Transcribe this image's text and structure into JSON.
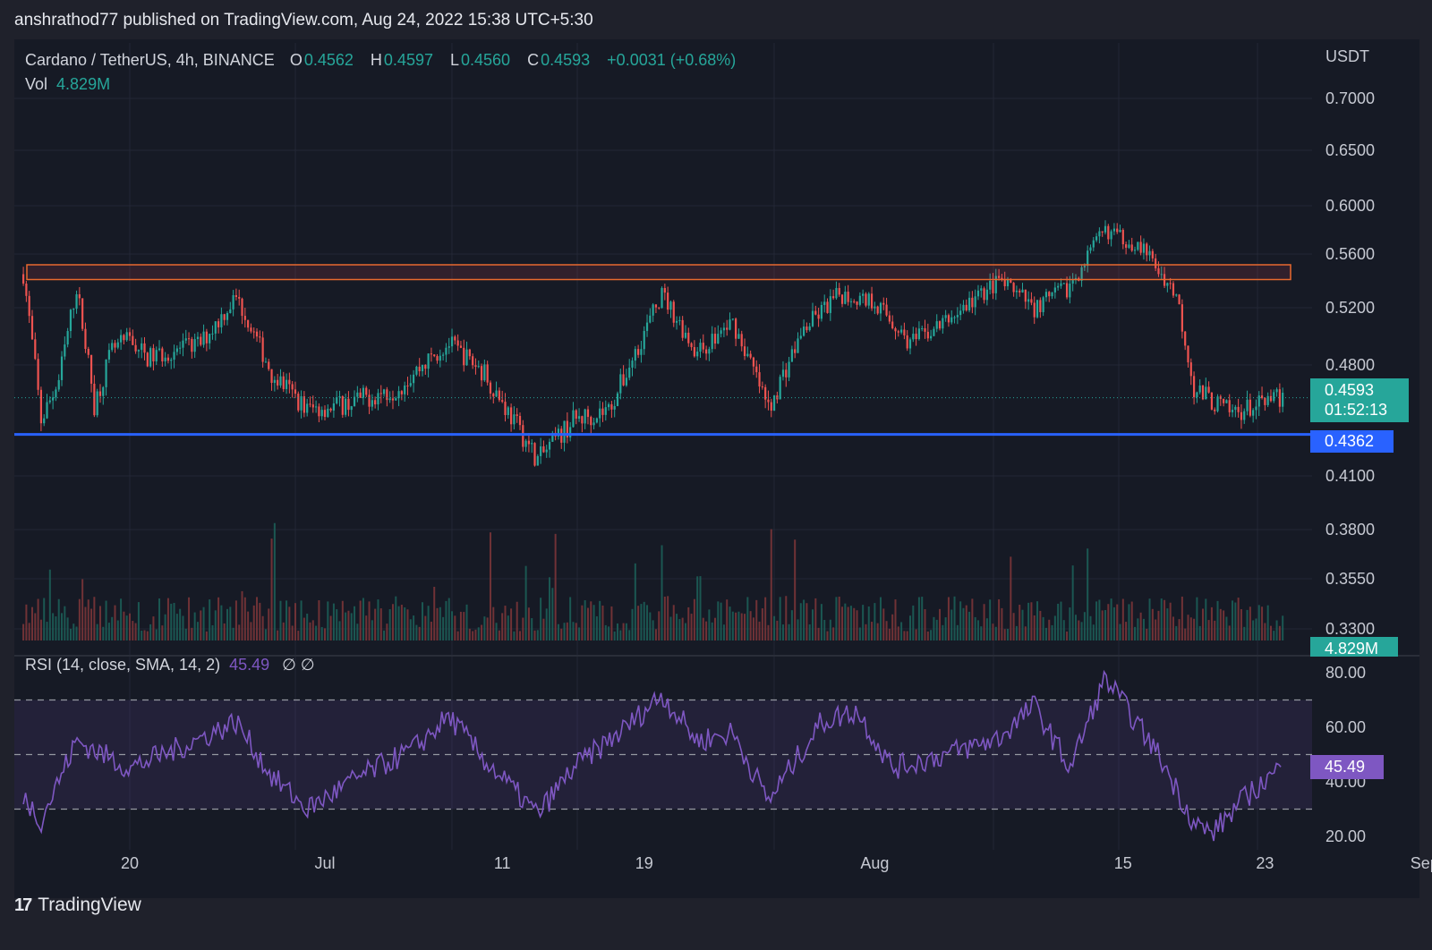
{
  "header": {
    "publish_line": "anshrathod77 published on TradingView.com, Aug 24, 2022 15:38 UTC+5:30"
  },
  "legend": {
    "symbol": "Cardano / TetherUS, 4h, BINANCE",
    "o_label": "O",
    "o_value": "0.4562",
    "h_label": "H",
    "h_value": "0.4597",
    "l_label": "L",
    "l_value": "0.4560",
    "c_label": "C",
    "c_value": "0.4593",
    "change": "+0.0031 (+0.68%)",
    "vol_label": "Vol",
    "vol_value": "4.829M"
  },
  "rsi_legend": {
    "label": "RSI (14, close, SMA, 14, 2)",
    "value": "45.49",
    "extra": "∅  ∅"
  },
  "price_axis": {
    "currency": "USDT",
    "ticks": [
      "0.7000",
      "0.6500",
      "0.6000",
      "0.5600",
      "0.5200",
      "0.4800",
      "0.4100",
      "0.3800",
      "0.3550",
      "0.3300"
    ]
  },
  "rsi_axis": {
    "ticks": [
      "80.00",
      "60.00",
      "40.00",
      "20.00"
    ]
  },
  "time_axis": {
    "ticks": [
      "20",
      "Jul",
      "11",
      "19",
      "Aug",
      "15",
      "23",
      "Sep"
    ]
  },
  "badges": {
    "last_price": "0.4593",
    "countdown": "01:52:13",
    "support": "0.4362",
    "volume": "4.829M",
    "rsi": "45.49"
  },
  "colors": {
    "up": "#26a69a",
    "down": "#ef5350",
    "support_line": "#2962ff",
    "resistance_box": "#f7525f",
    "rsi_line": "#7e57c2",
    "rsi_band": "#7e57c2",
    "background": "#161a25"
  },
  "footer": {
    "brand": "TradingView",
    "logo_text": "17"
  },
  "chart_data": {
    "type": "candlestick",
    "symbol": "ADA/USDT",
    "interval": "4h",
    "x_range": [
      "2022-06-14",
      "2022-09-03"
    ],
    "ylim": [
      0.33,
      0.7
    ],
    "last": {
      "open": 0.4562,
      "high": 0.4597,
      "low": 0.456,
      "close": 0.4593,
      "volume": "4.829M"
    },
    "support_level": 0.4362,
    "resistance_zone": [
      0.541,
      0.552
    ],
    "price_path": [
      [
        "2022-06-14",
        0.545
      ],
      [
        "2022-06-15",
        0.445
      ],
      [
        "2022-06-16",
        0.47
      ],
      [
        "2022-06-17",
        0.535
      ],
      [
        "2022-06-18",
        0.455
      ],
      [
        "2022-06-19",
        0.49
      ],
      [
        "2022-06-20",
        0.498
      ],
      [
        "2022-06-21",
        0.485
      ],
      [
        "2022-06-24",
        0.495
      ],
      [
        "2022-06-26",
        0.528
      ],
      [
        "2022-06-28",
        0.475
      ],
      [
        "2022-06-30",
        0.452
      ],
      [
        "2022-07-02",
        0.455
      ],
      [
        "2022-07-05",
        0.465
      ],
      [
        "2022-07-08",
        0.495
      ],
      [
        "2022-07-10",
        0.475
      ],
      [
        "2022-07-13",
        0.42
      ],
      [
        "2022-07-15",
        0.445
      ],
      [
        "2022-07-17",
        0.452
      ],
      [
        "2022-07-18",
        0.475
      ],
      [
        "2022-07-20",
        0.53
      ],
      [
        "2022-07-22",
        0.488
      ],
      [
        "2022-07-24",
        0.51
      ],
      [
        "2022-07-26",
        0.452
      ],
      [
        "2022-07-28",
        0.505
      ],
      [
        "2022-07-30",
        0.53
      ],
      [
        "2022-08-01",
        0.525
      ],
      [
        "2022-08-03",
        0.495
      ],
      [
        "2022-08-05",
        0.51
      ],
      [
        "2022-08-08",
        0.54
      ],
      [
        "2022-08-10",
        0.52
      ],
      [
        "2022-08-12",
        0.536
      ],
      [
        "2022-08-14",
        0.58
      ],
      [
        "2022-08-16",
        0.566
      ],
      [
        "2022-08-18",
        0.53
      ],
      [
        "2022-08-19",
        0.465
      ],
      [
        "2022-08-21",
        0.45
      ],
      [
        "2022-08-23",
        0.455
      ],
      [
        "2022-08-24",
        0.4593
      ]
    ],
    "rsi": {
      "period": 14,
      "levels": [
        70,
        50,
        30
      ],
      "last": 45.49,
      "path": [
        [
          "2022-06-14",
          35
        ],
        [
          "2022-06-15",
          26
        ],
        [
          "2022-06-17",
          55
        ],
        [
          "2022-06-20",
          45
        ],
        [
          "2022-06-23",
          53
        ],
        [
          "2022-06-26",
          62
        ],
        [
          "2022-06-28",
          42
        ],
        [
          "2022-06-30",
          30
        ],
        [
          "2022-07-03",
          42
        ],
        [
          "2022-07-06",
          52
        ],
        [
          "2022-07-08",
          64
        ],
        [
          "2022-07-10",
          48
        ],
        [
          "2022-07-13",
          28
        ],
        [
          "2022-07-15",
          45
        ],
        [
          "2022-07-18",
          60
        ],
        [
          "2022-07-20",
          72
        ],
        [
          "2022-07-22",
          55
        ],
        [
          "2022-07-24",
          58
        ],
        [
          "2022-07-26",
          33
        ],
        [
          "2022-07-29",
          62
        ],
        [
          "2022-07-31",
          66
        ],
        [
          "2022-08-02",
          45
        ],
        [
          "2022-08-05",
          50
        ],
        [
          "2022-08-08",
          56
        ],
        [
          "2022-08-10",
          68
        ],
        [
          "2022-08-12",
          45
        ],
        [
          "2022-08-14",
          78
        ],
        [
          "2022-08-17",
          50
        ],
        [
          "2022-08-19",
          25
        ],
        [
          "2022-08-20",
          21
        ],
        [
          "2022-08-22",
          35
        ],
        [
          "2022-08-24",
          45.49
        ]
      ]
    }
  }
}
